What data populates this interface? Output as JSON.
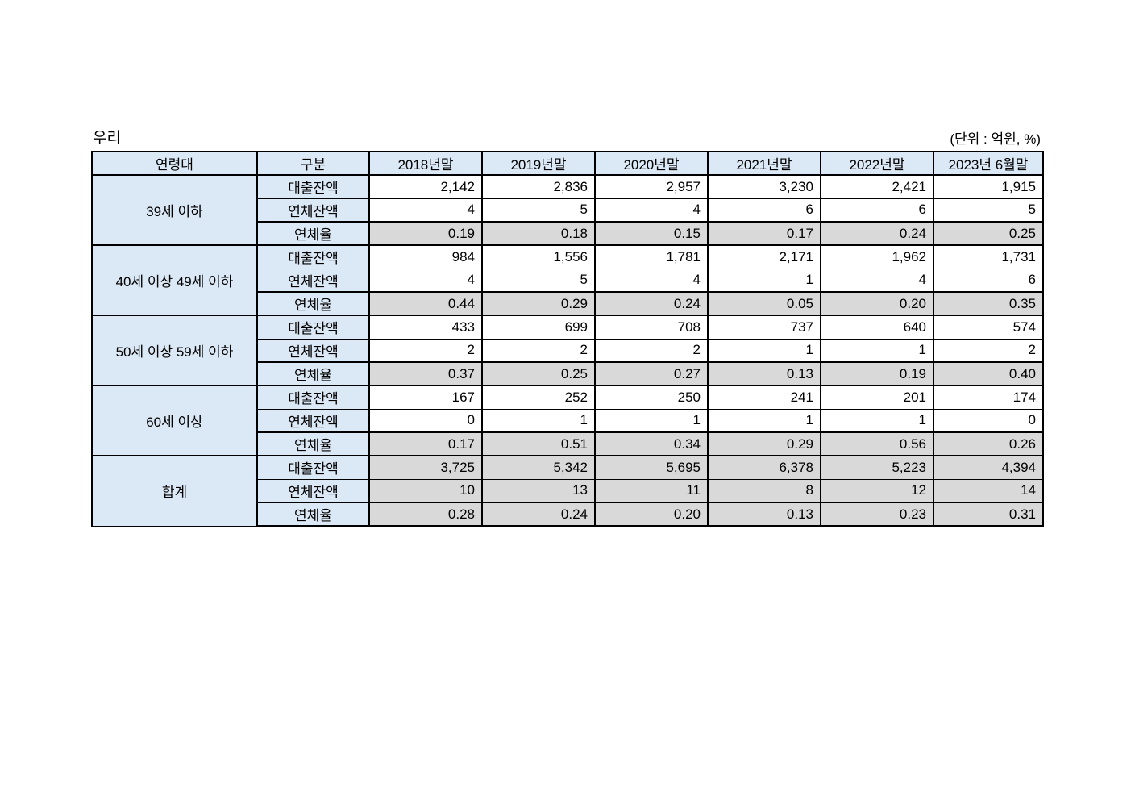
{
  "page": {
    "title": "우리",
    "unit_note": "(단위 : 억원, %)"
  },
  "colors": {
    "header_bg": "#dbe8f5",
    "shaded_bg": "#d9d9d9",
    "border": "#000000"
  },
  "table": {
    "headers": [
      "연령대",
      "구분",
      "2018년말",
      "2019년말",
      "2020년말",
      "2021년말",
      "2022년말",
      "2023년 6월말"
    ],
    "row_labels": {
      "loan": "대출잔액",
      "overdue": "연체잔액",
      "rate": "연체율"
    },
    "groups": [
      {
        "age": "39세 이하",
        "loan": [
          "2,142",
          "2,836",
          "2,957",
          "3,230",
          "2,421",
          "1,915"
        ],
        "overdue": [
          "4",
          "5",
          "4",
          "6",
          "6",
          "5"
        ],
        "rate": [
          "0.19",
          "0.18",
          "0.15",
          "0.17",
          "0.24",
          "0.25"
        ],
        "shaded_all": false
      },
      {
        "age": "40세 이상 49세 이하",
        "loan": [
          "984",
          "1,556",
          "1,781",
          "2,171",
          "1,962",
          "1,731"
        ],
        "overdue": [
          "4",
          "5",
          "4",
          "1",
          "4",
          "6"
        ],
        "rate": [
          "0.44",
          "0.29",
          "0.24",
          "0.05",
          "0.20",
          "0.35"
        ],
        "shaded_all": false
      },
      {
        "age": "50세 이상 59세 이하",
        "loan": [
          "433",
          "699",
          "708",
          "737",
          "640",
          "574"
        ],
        "overdue": [
          "2",
          "2",
          "2",
          "1",
          "1",
          "2"
        ],
        "rate": [
          "0.37",
          "0.25",
          "0.27",
          "0.13",
          "0.19",
          "0.40"
        ],
        "shaded_all": false
      },
      {
        "age": "60세 이상",
        "loan": [
          "167",
          "252",
          "250",
          "241",
          "201",
          "174"
        ],
        "overdue": [
          "0",
          "1",
          "1",
          "1",
          "1",
          "0"
        ],
        "rate": [
          "0.17",
          "0.51",
          "0.34",
          "0.29",
          "0.56",
          "0.26"
        ],
        "shaded_all": false
      },
      {
        "age": "합계",
        "loan": [
          "3,725",
          "5,342",
          "5,695",
          "6,378",
          "5,223",
          "4,394"
        ],
        "overdue": [
          "10",
          "13",
          "11",
          "8",
          "12",
          "14"
        ],
        "rate": [
          "0.28",
          "0.24",
          "0.20",
          "0.13",
          "0.23",
          "0.31"
        ],
        "shaded_all": true
      }
    ]
  }
}
